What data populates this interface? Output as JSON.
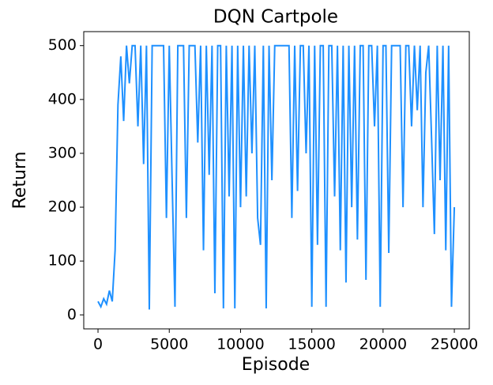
{
  "chart_data": {
    "type": "line",
    "title": "DQN Cartpole",
    "x_label": "Episode",
    "y_label": "Return",
    "x": [
      0,
      200,
      400,
      600,
      800,
      1000,
      1200,
      1400,
      1600,
      1800,
      2000,
      2200,
      2400,
      2600,
      2800,
      3000,
      3200,
      3400,
      3600,
      3800,
      4000,
      4200,
      4400,
      4600,
      4800,
      5000,
      5200,
      5400,
      5600,
      5800,
      6000,
      6200,
      6400,
      6600,
      6800,
      7000,
      7200,
      7400,
      7600,
      7800,
      8000,
      8200,
      8400,
      8600,
      8800,
      9000,
      9200,
      9400,
      9600,
      9800,
      10000,
      10200,
      10400,
      10600,
      10800,
      11000,
      11200,
      11400,
      11600,
      11800,
      12000,
      12200,
      12400,
      12600,
      12800,
      13000,
      13200,
      13400,
      13600,
      13800,
      14000,
      14200,
      14400,
      14600,
      14800,
      15000,
      15200,
      15400,
      15600,
      15800,
      16000,
      16200,
      16400,
      16600,
      16800,
      17000,
      17200,
      17400,
      17600,
      17800,
      18000,
      18200,
      18400,
      18600,
      18800,
      19000,
      19200,
      19400,
      19600,
      19800,
      20000,
      20200,
      20400,
      20600,
      20800,
      21000,
      21200,
      21400,
      21600,
      21800,
      22000,
      22200,
      22400,
      22600,
      22800,
      23000,
      23200,
      23400,
      23600,
      23800,
      24000,
      24200,
      24400,
      24600,
      24800,
      25000
    ],
    "series": [
      {
        "name": "Return",
        "color": "#1e90ff",
        "values": [
          25,
          15,
          30,
          20,
          45,
          25,
          120,
          390,
          480,
          360,
          500,
          430,
          500,
          500,
          350,
          500,
          280,
          500,
          10,
          500,
          500,
          500,
          500,
          500,
          180,
          500,
          250,
          15,
          500,
          500,
          500,
          180,
          500,
          500,
          500,
          320,
          500,
          120,
          500,
          260,
          500,
          40,
          500,
          500,
          12,
          500,
          220,
          500,
          12,
          500,
          200,
          500,
          220,
          500,
          300,
          500,
          180,
          130,
          500,
          12,
          500,
          250,
          500,
          500,
          500,
          500,
          500,
          500,
          180,
          500,
          230,
          500,
          500,
          300,
          500,
          15,
          500,
          130,
          500,
          500,
          15,
          500,
          500,
          220,
          500,
          120,
          500,
          60,
          500,
          200,
          500,
          140,
          500,
          500,
          65,
          500,
          500,
          350,
          500,
          15,
          500,
          500,
          115,
          500,
          500,
          500,
          500,
          200,
          500,
          500,
          350,
          500,
          380,
          500,
          200,
          450,
          500,
          330,
          150,
          500,
          250,
          500,
          120,
          500,
          15,
          200
        ]
      }
    ],
    "xlim": [
      -1000,
      26050
    ],
    "ylim": [
      -26,
      526
    ],
    "xticks": [
      0,
      5000,
      10000,
      15000,
      20000,
      25000
    ],
    "yticks": [
      0,
      100,
      200,
      300,
      400,
      500
    ]
  }
}
